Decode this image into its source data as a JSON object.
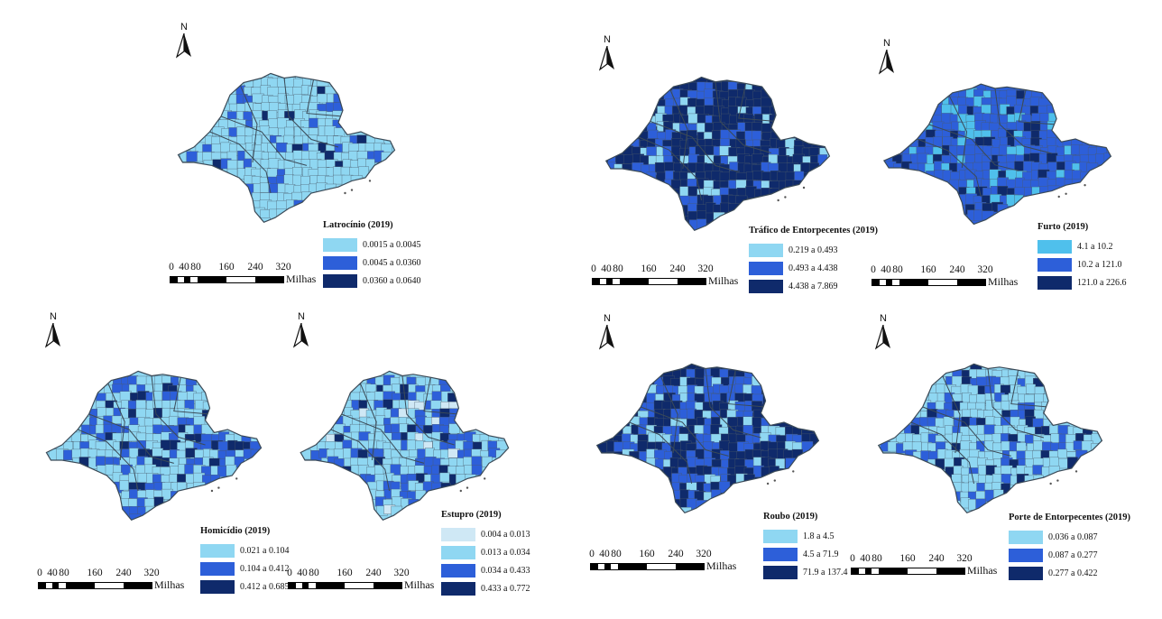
{
  "north_label": "N",
  "scale": {
    "ticks": [
      "0",
      "40",
      "80",
      "160",
      "240",
      "320"
    ],
    "unit": "Milhas"
  },
  "colors": {
    "light": "#8fd7f2",
    "light2": "#bfe4f3",
    "medium": "#2d5fd9",
    "dark": "#0f2a6b",
    "border": "#4a5a6a"
  },
  "maps": [
    {
      "id": "latrocinio",
      "title": "Latrocínio (2019)",
      "classes": [
        {
          "label": "0.0015 a 0.0045",
          "color": "#8fd7f2"
        },
        {
          "label": "0.0045 a 0.0360",
          "color": "#2d5fd9"
        },
        {
          "label": "0.0360 a 0.0640",
          "color": "#0f2a6b"
        }
      ],
      "fill_mix": [
        0.85,
        0.12,
        0.03
      ]
    },
    {
      "id": "trafico",
      "title": "Tráfico de Entorpecentes (2019)",
      "classes": [
        {
          "label": "0.219 a 0.493",
          "color": "#8fd7f2"
        },
        {
          "label": "0.493 a 4.438",
          "color": "#2d5fd9"
        },
        {
          "label": "4.438 a 7.869",
          "color": "#0f2a6b"
        }
      ],
      "fill_mix": [
        0.15,
        0.3,
        0.55
      ]
    },
    {
      "id": "furto",
      "title": "Furto (2019)",
      "classes": [
        {
          "label": "4.1 a 10.2",
          "color": "#4fc0ec"
        },
        {
          "label": "10.2 a 121.0",
          "color": "#2d5fd9"
        },
        {
          "label": "121.0 a 226.6",
          "color": "#0f2a6b"
        }
      ],
      "fill_mix": [
        0.2,
        0.65,
        0.15
      ]
    },
    {
      "id": "homicidio",
      "title": "Homicídio (2019)",
      "classes": [
        {
          "label": "0.021 a 0.104",
          "color": "#8fd7f2"
        },
        {
          "label": "0.104 a 0.412",
          "color": "#2d5fd9"
        },
        {
          "label": "0.412 a 0.685",
          "color": "#0f2a6b"
        }
      ],
      "fill_mix": [
        0.6,
        0.32,
        0.08
      ]
    },
    {
      "id": "estupro",
      "title": "Estupro (2019)",
      "classes": [
        {
          "label": "0.004 a 0.013",
          "color": "#cfe8f5"
        },
        {
          "label": "0.013 a 0.034",
          "color": "#8fd7f2"
        },
        {
          "label": "0.034 a 0.433",
          "color": "#2d5fd9"
        },
        {
          "label": "0.433 a 0.772",
          "color": "#0f2a6b"
        }
      ],
      "fill_mix": [
        0.05,
        0.55,
        0.32,
        0.08
      ]
    },
    {
      "id": "roubo",
      "title": "Roubo (2019)",
      "classes": [
        {
          "label": "1.8 a 4.5",
          "color": "#8fd7f2"
        },
        {
          "label": "4.5 a 71.9",
          "color": "#2d5fd9"
        },
        {
          "label": "71.9 a 137.4",
          "color": "#0f2a6b"
        }
      ],
      "fill_mix": [
        0.25,
        0.35,
        0.4
      ]
    },
    {
      "id": "porte",
      "title": "Porte de Entorpecentes (2019)",
      "classes": [
        {
          "label": "0.036 a 0.087",
          "color": "#8fd7f2"
        },
        {
          "label": "0.087 a 0.277",
          "color": "#2d5fd9"
        },
        {
          "label": "0.277 a 0.422",
          "color": "#0f2a6b"
        }
      ],
      "fill_mix": [
        0.65,
        0.27,
        0.08
      ]
    }
  ]
}
